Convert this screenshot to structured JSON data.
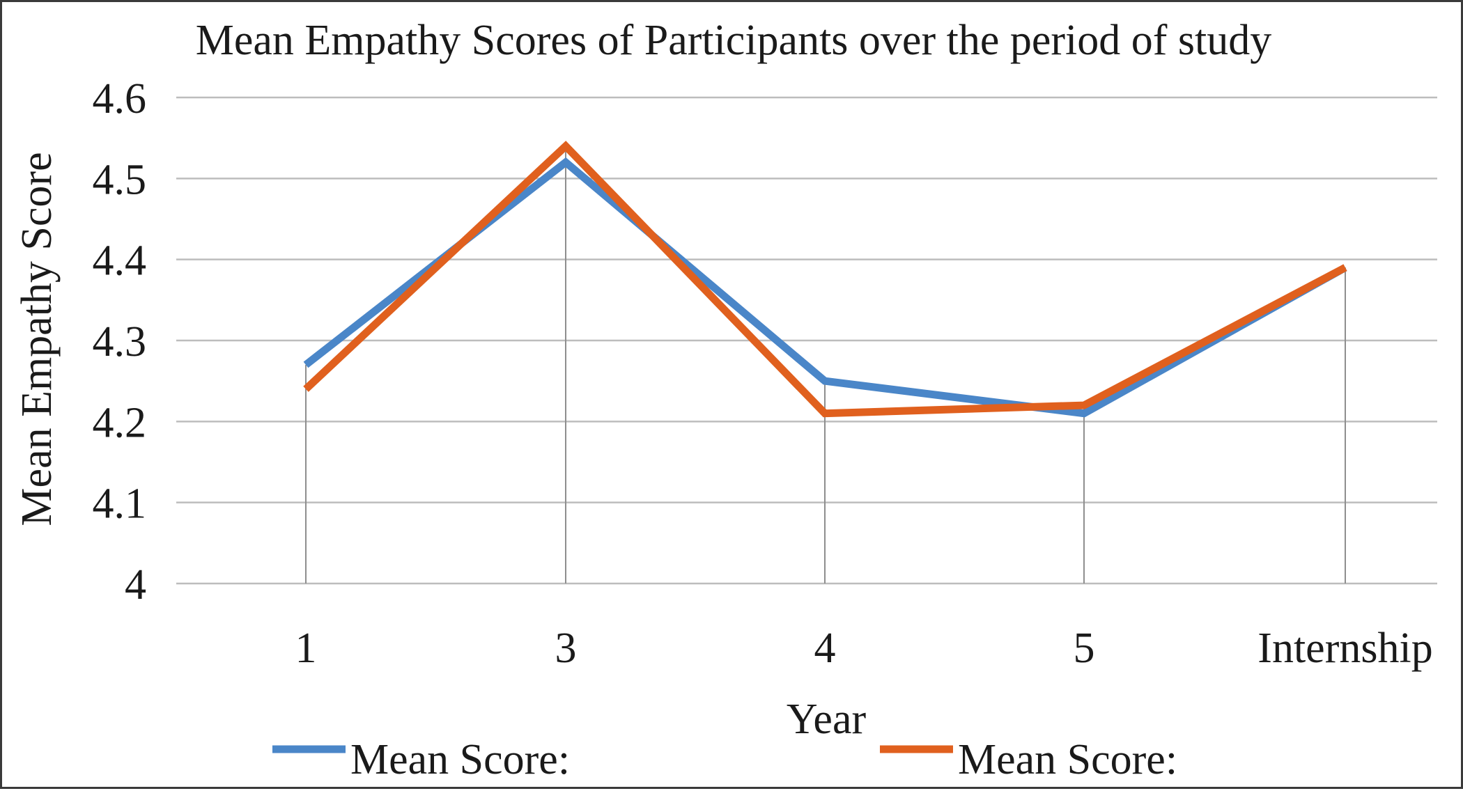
{
  "chart_data": {
    "type": "line",
    "title": "Mean Empathy Scores of Participants over the period of study",
    "xlabel": "Year",
    "ylabel": "Mean Empathy Score",
    "categories": [
      "1",
      "3",
      "4",
      "5",
      "Internship"
    ],
    "ylim": [
      4,
      4.6
    ],
    "yticks": [
      4,
      4.1,
      4.2,
      4.3,
      4.4,
      4.5,
      4.6
    ],
    "ytick_labels": [
      "4",
      "4.1",
      "4.2",
      "4.3",
      "4.4",
      "4.5",
      "4.6"
    ],
    "grid": "horizontal",
    "legend_position": "bottom",
    "series": [
      {
        "name": "Mean Score:",
        "color": "#4a86c8",
        "values": [
          4.27,
          4.52,
          4.25,
          4.21,
          4.39
        ]
      },
      {
        "name": "Mean Score:",
        "color": "#e0601e",
        "values": [
          4.24,
          4.54,
          4.21,
          4.22,
          4.39
        ]
      }
    ]
  }
}
